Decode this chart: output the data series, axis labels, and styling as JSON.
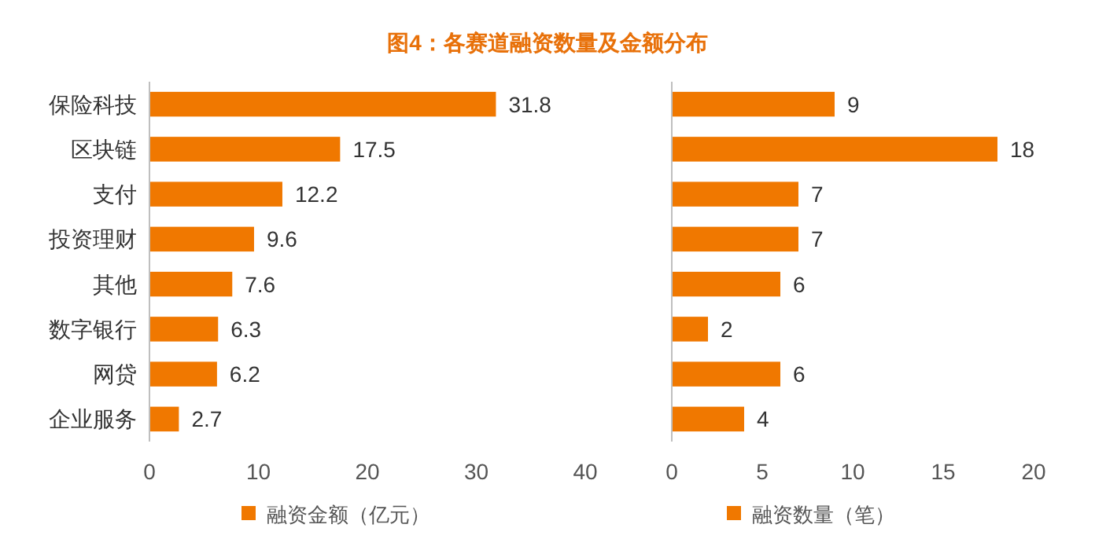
{
  "chart_data": [
    {
      "type": "bar",
      "orientation": "horizontal",
      "title": "图4：各赛道融资数量及金额分布",
      "categories": [
        "保险科技",
        "区块链",
        "支付",
        "投资理财",
        "其他",
        "数字银行",
        "网贷",
        "企业服务"
      ],
      "series": [
        {
          "name": "融资金额（亿元）",
          "color": "#f07800",
          "values": [
            31.8,
            17.5,
            12.2,
            9.6,
            7.6,
            6.3,
            6.2,
            2.7
          ]
        }
      ],
      "xlim": [
        0,
        40
      ],
      "xticks": [
        0,
        10,
        20,
        30,
        40
      ],
      "data_labels": true,
      "legend": "bottom",
      "grid": false
    },
    {
      "type": "bar",
      "orientation": "horizontal",
      "categories": [
        "保险科技",
        "区块链",
        "支付",
        "投资理财",
        "其他",
        "数字银行",
        "网贷",
        "企业服务"
      ],
      "series": [
        {
          "name": "融资数量（笔）",
          "color": "#f07800",
          "values": [
            9,
            18,
            7,
            7,
            6,
            2,
            6,
            4
          ]
        }
      ],
      "xlim": [
        0,
        20
      ],
      "xticks": [
        0,
        5,
        10,
        15,
        20
      ],
      "data_labels": true,
      "legend": "bottom",
      "grid": false,
      "tick_labels": "x"
    }
  ]
}
